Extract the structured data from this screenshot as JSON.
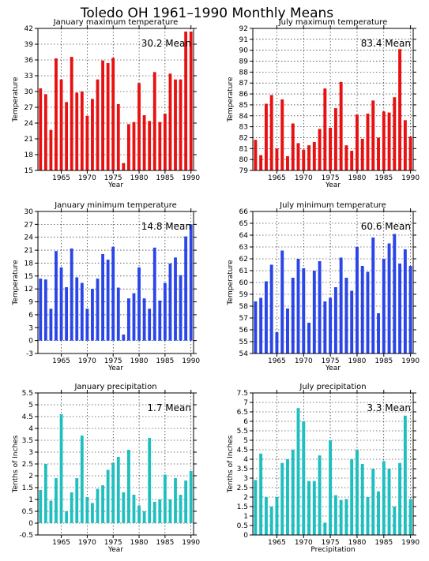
{
  "title": "Toledo OH   1961–1990 Monthly Means",
  "chart_data": [
    {
      "type": "bar",
      "title": "January maximum temperature",
      "xlabel": "Year",
      "ylabel": "Temperature",
      "mean_label": "30.2 Mean",
      "color": "#e81010",
      "xlim": [
        1961,
        1990
      ],
      "ylim": [
        15,
        42
      ],
      "yticks": [
        15,
        18,
        21,
        24,
        27,
        30,
        33,
        36,
        39,
        42
      ],
      "xticks": [
        1965,
        1970,
        1975,
        1980,
        1985,
        1990
      ],
      "grid": true,
      "x": [
        1961,
        1962,
        1963,
        1964,
        1965,
        1966,
        1967,
        1968,
        1969,
        1970,
        1971,
        1972,
        1973,
        1974,
        1975,
        1976,
        1977,
        1978,
        1979,
        1980,
        1981,
        1982,
        1983,
        1984,
        1985,
        1986,
        1987,
        1988,
        1989,
        1990
      ],
      "values": [
        30.6,
        29.5,
        22.7,
        36.3,
        32.3,
        28.0,
        36.6,
        29.8,
        30.0,
        25.4,
        28.6,
        32.3,
        35.9,
        35.4,
        36.4,
        27.6,
        16.4,
        23.8,
        24.2,
        31.6,
        25.5,
        24.4,
        33.7,
        24.2,
        25.8,
        33.4,
        32.3,
        32.3,
        41.4,
        41.4
      ]
    },
    {
      "type": "bar",
      "title": "July maximum temperature",
      "xlabel": "Year",
      "ylabel": "Temperature",
      "mean_label": "83.4 Mean",
      "color": "#e81010",
      "xlim": [
        1961,
        1990
      ],
      "ylim": [
        79,
        92
      ],
      "yticks": [
        79,
        80,
        81,
        82,
        83,
        84,
        85,
        86,
        87,
        88,
        89,
        90,
        91,
        92
      ],
      "xticks": [
        1965,
        1970,
        1975,
        1980,
        1985,
        1990
      ],
      "grid": true,
      "x": [
        1961,
        1962,
        1963,
        1964,
        1965,
        1966,
        1967,
        1968,
        1969,
        1970,
        1971,
        1972,
        1973,
        1974,
        1975,
        1976,
        1977,
        1978,
        1979,
        1980,
        1981,
        1982,
        1983,
        1984,
        1985,
        1986,
        1987,
        1988,
        1989,
        1990
      ],
      "values": [
        81.8,
        80.4,
        85.1,
        85.9,
        81.0,
        85.5,
        80.3,
        83.3,
        81.5,
        80.9,
        81.3,
        81.6,
        82.8,
        86.5,
        82.9,
        84.7,
        87.1,
        81.3,
        80.8,
        84.1,
        81.9,
        84.2,
        85.4,
        82.0,
        84.4,
        84.3,
        85.7,
        90.1,
        83.6,
        82.1
      ]
    },
    {
      "type": "bar",
      "title": "January minimum temperature",
      "xlabel": "Year",
      "ylabel": "Temperature",
      "mean_label": "14.8 Mean",
      "color": "#2a45e8",
      "xlim": [
        1961,
        1990
      ],
      "ylim": [
        -3,
        30
      ],
      "yticks": [
        -3,
        0,
        3,
        6,
        9,
        12,
        15,
        18,
        21,
        24,
        27,
        30
      ],
      "xticks": [
        1965,
        1970,
        1975,
        1980,
        1985,
        1990
      ],
      "grid": true,
      "x": [
        1961,
        1962,
        1963,
        1964,
        1965,
        1966,
        1967,
        1968,
        1969,
        1970,
        1971,
        1972,
        1973,
        1974,
        1975,
        1976,
        1977,
        1978,
        1979,
        1980,
        1981,
        1982,
        1983,
        1984,
        1985,
        1986,
        1987,
        1988,
        1989,
        1990
      ],
      "values": [
        14.4,
        14.2,
        7.4,
        20.8,
        17.0,
        12.4,
        21.4,
        14.7,
        13.4,
        7.4,
        12.0,
        14.4,
        20.1,
        18.8,
        21.8,
        12.3,
        1.4,
        9.8,
        11.0,
        17.0,
        9.8,
        7.4,
        21.6,
        9.3,
        13.4,
        17.9,
        19.3,
        15.2,
        24.2,
        27.0
      ]
    },
    {
      "type": "bar",
      "title": "July minimum temperature",
      "xlabel": "Year",
      "ylabel": "Temperature",
      "mean_label": "60.6 Mean",
      "color": "#2a45e8",
      "xlim": [
        1961,
        1990
      ],
      "ylim": [
        54,
        66
      ],
      "yticks": [
        54,
        55,
        56,
        57,
        58,
        59,
        60,
        61,
        62,
        63,
        64,
        65,
        66
      ],
      "xticks": [
        1965,
        1970,
        1975,
        1980,
        1985,
        1990
      ],
      "grid": true,
      "x": [
        1961,
        1962,
        1963,
        1964,
        1965,
        1966,
        1967,
        1968,
        1969,
        1970,
        1971,
        1972,
        1973,
        1974,
        1975,
        1976,
        1977,
        1978,
        1979,
        1980,
        1981,
        1982,
        1983,
        1984,
        1985,
        1986,
        1987,
        1988,
        1989,
        1990
      ],
      "values": [
        58.4,
        58.7,
        60.1,
        61.5,
        55.8,
        62.7,
        57.8,
        60.4,
        62.0,
        61.2,
        56.6,
        61.0,
        61.8,
        58.4,
        58.7,
        59.6,
        62.1,
        60.4,
        59.3,
        63.0,
        61.4,
        60.9,
        63.8,
        57.4,
        62.0,
        63.3,
        64.1,
        61.6,
        62.8,
        61.4
      ]
    },
    {
      "type": "bar",
      "title": "January precipitation",
      "xlabel": "Year",
      "ylabel": "Tenths of Inches",
      "mean_label": "1.7 Mean",
      "color": "#1fbfbf",
      "xlim": [
        1961,
        1990
      ],
      "ylim": [
        -0.5,
        5.5
      ],
      "yticks": [
        -0.5,
        0,
        0.5,
        1,
        1.5,
        2,
        2.5,
        3,
        3.5,
        4,
        4.5,
        5,
        5.5
      ],
      "xticks": [
        1965,
        1970,
        1975,
        1980,
        1985,
        1990
      ],
      "grid": true,
      "x": [
        1961,
        1962,
        1963,
        1964,
        1965,
        1966,
        1967,
        1968,
        1969,
        1970,
        1971,
        1972,
        1973,
        1974,
        1975,
        1976,
        1977,
        1978,
        1979,
        1980,
        1981,
        1982,
        1983,
        1984,
        1985,
        1986,
        1987,
        1988,
        1989,
        1990
      ],
      "values": [
        1.4,
        2.5,
        0.95,
        1.9,
        4.6,
        0.5,
        1.3,
        1.9,
        3.7,
        1.1,
        0.85,
        1.45,
        1.6,
        2.25,
        2.55,
        2.8,
        1.3,
        3.1,
        1.2,
        0.75,
        0.5,
        3.6,
        0.9,
        1.0,
        2.05,
        1.0,
        1.9,
        1.2,
        1.8,
        2.2
      ]
    },
    {
      "type": "bar",
      "title": "July precipitation",
      "xlabel": "Precipitation",
      "ylabel": "Tenths of Inches",
      "mean_label": "3.3 Mean",
      "color": "#1fbfbf",
      "xlim": [
        1961,
        1990
      ],
      "ylim": [
        0,
        7.5
      ],
      "yticks": [
        0,
        0.5,
        1,
        1.5,
        2,
        2.5,
        3,
        3.5,
        4,
        4.5,
        5,
        5.5,
        6,
        6.5,
        7,
        7.5
      ],
      "xticks": [
        1965,
        1970,
        1975,
        1980,
        1985,
        1990
      ],
      "grid": true,
      "x": [
        1961,
        1962,
        1963,
        1964,
        1965,
        1966,
        1967,
        1968,
        1969,
        1970,
        1971,
        1972,
        1973,
        1974,
        1975,
        1976,
        1977,
        1978,
        1979,
        1980,
        1981,
        1982,
        1983,
        1984,
        1985,
        1986,
        1987,
        1988,
        1989,
        1990
      ],
      "values": [
        2.9,
        4.3,
        2.0,
        1.5,
        2.0,
        3.8,
        4.0,
        4.5,
        6.7,
        6.0,
        2.85,
        2.85,
        4.2,
        0.65,
        5.0,
        2.1,
        1.85,
        1.9,
        4.0,
        4.5,
        3.75,
        2.0,
        3.5,
        2.3,
        3.9,
        3.5,
        1.5,
        3.8,
        6.3,
        1.9
      ]
    }
  ]
}
